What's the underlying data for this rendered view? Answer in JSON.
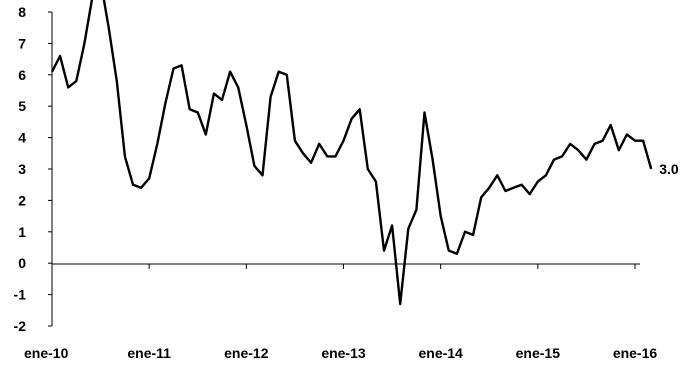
{
  "chart_data": {
    "type": "line",
    "title": "",
    "xlabel": "",
    "ylabel": "",
    "ylim": [
      -2,
      8
    ],
    "yticks": [
      8,
      7,
      6,
      5,
      4,
      3,
      2,
      1,
      0,
      -1,
      -2
    ],
    "xtick_labels": [
      "ene-10",
      "ene-11",
      "ene-12",
      "ene-13",
      "ene-14",
      "ene-15",
      "ene-16"
    ],
    "x_start": "ene-10",
    "end_label": "3.0",
    "grid": false,
    "series": [
      {
        "values": [
          6.1,
          6.6,
          5.6,
          5.8,
          7.0,
          8.5,
          9.0,
          7.5,
          5.8,
          3.4,
          2.5,
          2.4,
          2.7,
          3.8,
          5.1,
          6.2,
          6.3,
          4.9,
          4.8,
          4.1,
          5.4,
          5.2,
          6.1,
          5.6,
          4.4,
          3.1,
          2.8,
          5.3,
          6.1,
          6.0,
          3.9,
          3.5,
          3.2,
          3.8,
          3.4,
          3.4,
          3.9,
          4.6,
          4.9,
          3.0,
          2.6,
          0.4,
          1.2,
          -1.3,
          1.1,
          1.7,
          4.8,
          3.3,
          1.5,
          0.4,
          0.3,
          1.0,
          0.9,
          2.1,
          2.4,
          2.8,
          2.3,
          2.4,
          2.5,
          2.2,
          2.6,
          2.8,
          3.3,
          3.4,
          3.8,
          3.6,
          3.3,
          3.8,
          3.9,
          4.4,
          3.6,
          4.1,
          3.9,
          3.9,
          3.0
        ]
      }
    ]
  }
}
